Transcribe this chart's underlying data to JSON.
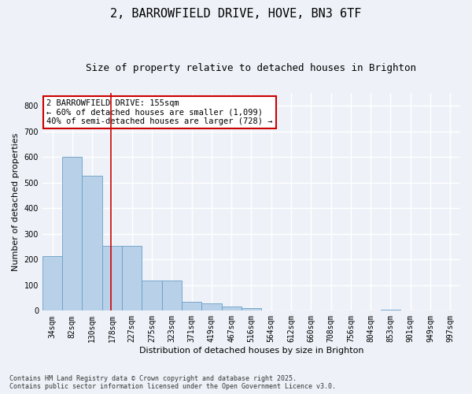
{
  "title_line1": "2, BARROWFIELD DRIVE, HOVE, BN3 6TF",
  "title_line2": "Size of property relative to detached houses in Brighton",
  "xlabel": "Distribution of detached houses by size in Brighton",
  "ylabel": "Number of detached properties",
  "categories": [
    "34sqm",
    "82sqm",
    "130sqm",
    "178sqm",
    "227sqm",
    "275sqm",
    "323sqm",
    "371sqm",
    "419sqm",
    "467sqm",
    "516sqm",
    "564sqm",
    "612sqm",
    "660sqm",
    "708sqm",
    "756sqm",
    "804sqm",
    "853sqm",
    "901sqm",
    "949sqm",
    "997sqm"
  ],
  "values": [
    213,
    600,
    528,
    253,
    253,
    118,
    118,
    35,
    30,
    15,
    10,
    0,
    0,
    0,
    0,
    0,
    0,
    3,
    0,
    0,
    0
  ],
  "bar_color": "#b8d0e8",
  "bar_edgecolor": "#6a9fc8",
  "vline_x": 2.93,
  "vline_color": "#cc0000",
  "annotation_text": "2 BARROWFIELD DRIVE: 155sqm\n← 60% of detached houses are smaller (1,099)\n40% of semi-detached houses are larger (728) →",
  "annotation_box_color": "#ffffff",
  "annotation_box_edgecolor": "#cc0000",
  "ylim": [
    0,
    850
  ],
  "yticks": [
    0,
    100,
    200,
    300,
    400,
    500,
    600,
    700,
    800
  ],
  "background_color": "#eef2f8",
  "plot_background": "#eef2f8",
  "grid_color": "#ffffff",
  "footer_line1": "Contains HM Land Registry data © Crown copyright and database right 2025.",
  "footer_line2": "Contains public sector information licensed under the Open Government Licence v3.0.",
  "title_fontsize": 11,
  "subtitle_fontsize": 9,
  "label_fontsize": 8,
  "tick_fontsize": 7,
  "annotation_fontsize": 7.5
}
